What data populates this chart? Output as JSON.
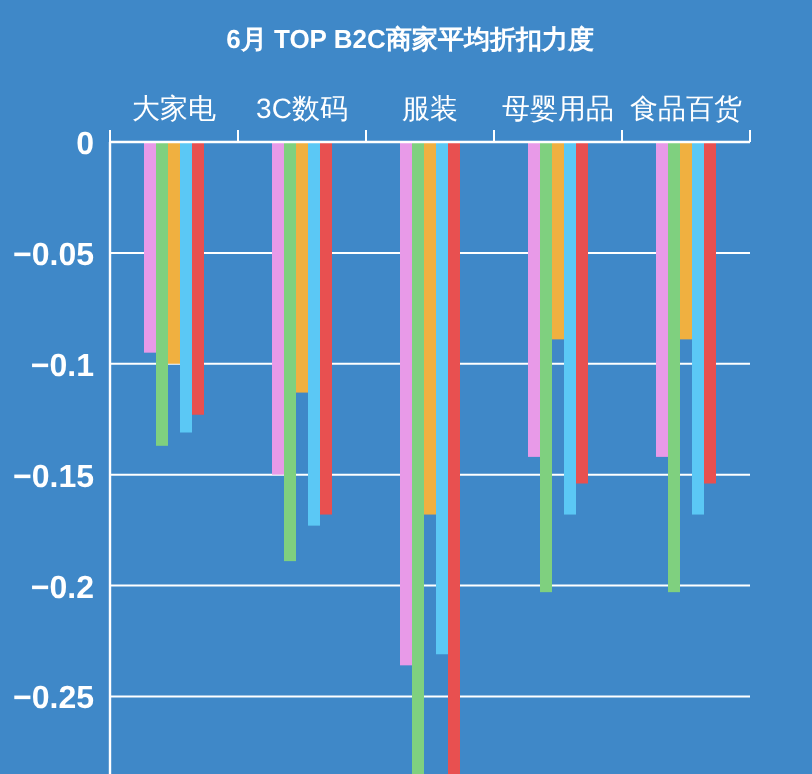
{
  "chart_data": {
    "type": "bar",
    "title": "6月 TOP B2C商家平均折扣力度",
    "categories": [
      "大家电",
      "3C数码",
      "服装",
      "母婴用品",
      "食品百货"
    ],
    "series": [
      {
        "color": "#e89ae8",
        "values": [
          -0.095,
          -0.15,
          -0.236,
          -0.142,
          -0.142
        ]
      },
      {
        "color": "#7fd07f",
        "values": [
          -0.137,
          -0.189,
          -0.285,
          -0.203,
          -0.203
        ]
      },
      {
        "color": "#f0b040",
        "values": [
          -0.1,
          -0.113,
          -0.168,
          -0.089,
          -0.089
        ]
      },
      {
        "color": "#5bc8f5",
        "values": [
          -0.131,
          -0.173,
          -0.231,
          -0.168,
          -0.168
        ]
      },
      {
        "color": "#e85050",
        "values": [
          -0.123,
          -0.168,
          -0.285,
          -0.154,
          -0.154
        ]
      }
    ],
    "ylim": [
      -0.285,
      0
    ],
    "yticks": [
      0,
      -0.05,
      -0.1,
      -0.15,
      -0.2,
      -0.25
    ],
    "grid": "y"
  }
}
